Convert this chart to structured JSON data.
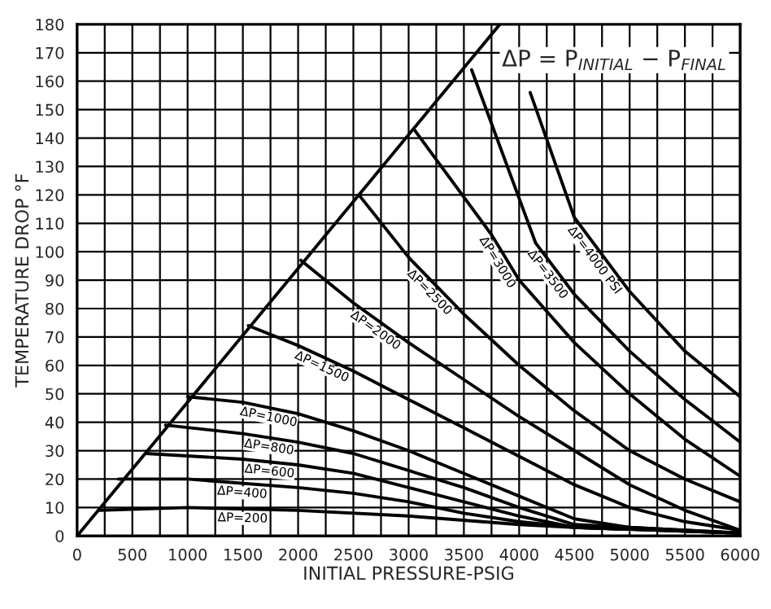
{
  "chart_data": {
    "type": "line",
    "xlabel": "INITIAL PRESSURE-PSIG",
    "ylabel": "TEMPERATURE DROP °F",
    "annotations": [
      "ΔP = P$_{INITIAL}$ − P$_{FINAL}$"
    ],
    "xlim": [
      0,
      6000
    ],
    "ylim": [
      0,
      180
    ],
    "xticks": [
      0,
      {
        "value": 250,
        "label": null
      },
      500,
      {
        "value": 750,
        "label": null
      },
      1000,
      {
        "value": 1250,
        "label": null
      },
      1500,
      {
        "value": 1750,
        "label": null
      },
      2000,
      {
        "value": 2250,
        "label": null
      },
      2500,
      {
        "value": 2750,
        "label": null
      },
      3000,
      {
        "value": 3250,
        "label": null
      },
      3500,
      {
        "value": 3750,
        "label": null
      },
      4000,
      {
        "value": 4250,
        "label": null
      },
      4500,
      {
        "value": 4750,
        "label": null
      },
      5000,
      {
        "value": 5250,
        "label": null
      },
      5500,
      {
        "value": 5750,
        "label": null
      },
      6000
    ],
    "yticks": [
      0,
      10,
      20,
      30,
      40,
      50,
      60,
      70,
      80,
      90,
      100,
      110,
      120,
      130,
      140,
      150,
      160,
      170,
      180
    ],
    "grid": true,
    "legend": false,
    "marker": "none",
    "line_style": "solid",
    "series": [
      {
        "color": "#000000",
        "x": [
          0,
          3825
        ],
        "values": [
          0,
          180
        ]
      },
      {
        "name": "ΔP=200",
        "color": "#000000",
        "x": [
          200,
          1000,
          2000,
          3000,
          4000,
          4500,
          6000
        ],
        "values": [
          9,
          10,
          9,
          7,
          4,
          3,
          1
        ]
      },
      {
        "name": "ΔP=400",
        "color": "#000000",
        "x": [
          375,
          1000,
          2000,
          2500,
          3000,
          3500,
          4000,
          4500,
          6000
        ],
        "values": [
          20,
          20,
          17,
          15,
          12,
          8,
          5,
          3,
          1
        ]
      },
      {
        "name": "ΔP=600",
        "color": "#000000",
        "x": [
          625,
          1500,
          2000,
          2500,
          3000,
          3500,
          4000,
          4500,
          6000
        ],
        "values": [
          29,
          27,
          25,
          22,
          17,
          12,
          7,
          3,
          1
        ]
      },
      {
        "name": "ΔP=800",
        "color": "#000000",
        "x": [
          800,
          1500,
          2000,
          2500,
          3000,
          3500,
          4000,
          4500,
          6000
        ],
        "values": [
          39,
          36,
          33,
          29,
          23,
          17,
          10,
          4,
          1
        ]
      },
      {
        "name": "ΔP=1000",
        "color": "#000000",
        "x": [
          1000,
          1500,
          2000,
          2500,
          3000,
          3500,
          4000,
          4500,
          5000,
          6000
        ],
        "values": [
          49,
          47,
          43,
          37,
          30,
          22,
          14,
          6,
          3,
          1
        ]
      },
      {
        "name": "ΔP=1500",
        "color": "#000000",
        "x": [
          1550,
          2000,
          2500,
          3000,
          3500,
          4000,
          4500,
          5000,
          5500,
          6000
        ],
        "values": [
          74,
          67,
          58,
          48,
          38,
          28,
          18,
          10,
          5,
          2
        ]
      },
      {
        "name": "ΔP=2000",
        "color": "#000000",
        "x": [
          2025,
          2500,
          3000,
          3500,
          4000,
          4500,
          5000,
          5500,
          6000
        ],
        "values": [
          97,
          82,
          68,
          55,
          42,
          30,
          18,
          9,
          2
        ]
      },
      {
        "name": "ΔP=2500",
        "color": "#000000",
        "x": [
          2550,
          3000,
          3500,
          4000,
          4500,
          5000,
          5500,
          6000
        ],
        "values": [
          120,
          98,
          78,
          60,
          44,
          30,
          20,
          12
        ]
      },
      {
        "name": "ΔP=3000",
        "color": "#000000",
        "x": [
          3050,
          3750,
          4000,
          4500,
          5000,
          5500,
          6000
        ],
        "values": [
          143,
          106,
          90,
          68,
          50,
          34,
          21
        ]
      },
      {
        "name": "ΔP=3500",
        "color": "#000000",
        "x": [
          3570,
          4150,
          4500,
          5000,
          5500,
          6000
        ],
        "values": [
          164,
          103,
          85,
          65,
          48,
          33
        ]
      },
      {
        "name": "ΔP=4000 PSI",
        "color": "#000000",
        "x": [
          4100,
          4500,
          5000,
          5500,
          6000
        ],
        "values": [
          156,
          112,
          86,
          65,
          49
        ]
      }
    ]
  }
}
